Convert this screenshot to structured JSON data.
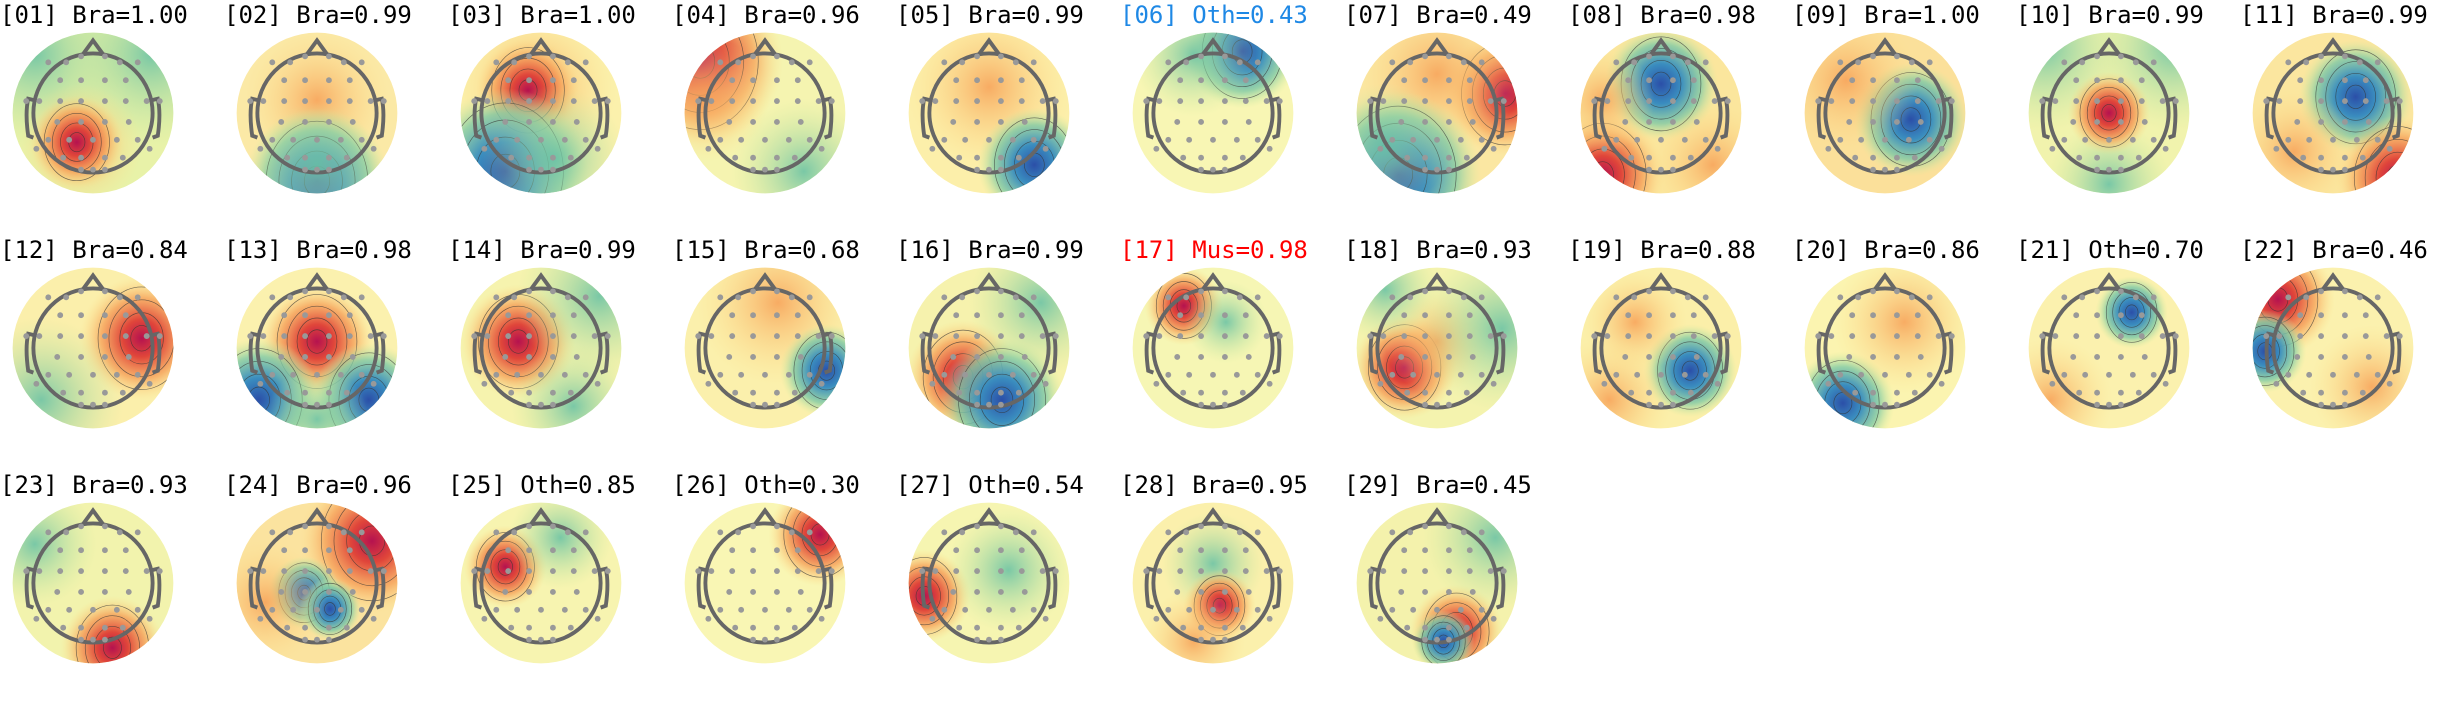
{
  "figure": {
    "components": [
      {
        "index": "01",
        "label": "[01] Bra=1.00",
        "category": "Bra",
        "score": "1.00"
      },
      {
        "index": "02",
        "label": "[02] Bra=0.99",
        "category": "Bra",
        "score": "0.99"
      },
      {
        "index": "03",
        "label": "[03] Bra=1.00",
        "category": "Bra",
        "score": "1.00"
      },
      {
        "index": "04",
        "label": "[04] Bra=0.96",
        "category": "Bra",
        "score": "0.96"
      },
      {
        "index": "05",
        "label": "[05] Bra=0.99",
        "category": "Bra",
        "score": "0.99"
      },
      {
        "index": "06",
        "label": "[06] Oth=0.43",
        "category": "Oth",
        "score": "0.43",
        "color": "#1e88e5"
      },
      {
        "index": "07",
        "label": "[07] Bra=0.49",
        "category": "Bra",
        "score": "0.49"
      },
      {
        "index": "08",
        "label": "[08] Bra=0.98",
        "category": "Bra",
        "score": "0.98"
      },
      {
        "index": "09",
        "label": "[09] Bra=1.00",
        "category": "Bra",
        "score": "1.00"
      },
      {
        "index": "10",
        "label": "[10] Bra=0.99",
        "category": "Bra",
        "score": "0.99"
      },
      {
        "index": "11",
        "label": "[11] Bra=0.99",
        "category": "Bra",
        "score": "0.99"
      },
      {
        "index": "12",
        "label": "[12] Bra=0.84",
        "category": "Bra",
        "score": "0.84"
      },
      {
        "index": "13",
        "label": "[13] Bra=0.98",
        "category": "Bra",
        "score": "0.98"
      },
      {
        "index": "14",
        "label": "[14] Bra=0.99",
        "category": "Bra",
        "score": "0.99"
      },
      {
        "index": "15",
        "label": "[15] Bra=0.68",
        "category": "Bra",
        "score": "0.68"
      },
      {
        "index": "16",
        "label": "[16] Bra=0.99",
        "category": "Bra",
        "score": "0.99"
      },
      {
        "index": "17",
        "label": "[17] Mus=0.98",
        "category": "Mus",
        "score": "0.98",
        "color": "#ff0000"
      },
      {
        "index": "18",
        "label": "[18] Bra=0.93",
        "category": "Bra",
        "score": "0.93"
      },
      {
        "index": "19",
        "label": "[19] Bra=0.88",
        "category": "Bra",
        "score": "0.88"
      },
      {
        "index": "20",
        "label": "[20] Bra=0.86",
        "category": "Bra",
        "score": "0.86"
      },
      {
        "index": "21",
        "label": "[21] Oth=0.70",
        "category": "Oth",
        "score": "0.70"
      },
      {
        "index": "22",
        "label": "[22] Bra=0.46",
        "category": "Bra",
        "score": "0.46"
      },
      {
        "index": "23",
        "label": "[23] Bra=0.93",
        "category": "Bra",
        "score": "0.93"
      },
      {
        "index": "24",
        "label": "[24] Bra=0.96",
        "category": "Bra",
        "score": "0.96"
      },
      {
        "index": "25",
        "label": "[25] Oth=0.85",
        "category": "Oth",
        "score": "0.85"
      },
      {
        "index": "26",
        "label": "[26] Oth=0.30",
        "category": "Oth",
        "score": "0.30"
      },
      {
        "index": "27",
        "label": "[27] Oth=0.54",
        "category": "Oth",
        "score": "0.54"
      },
      {
        "index": "28",
        "label": "[28] Bra=0.95",
        "category": "Bra",
        "score": "0.95"
      },
      {
        "index": "29",
        "label": "[29] Bra=0.45",
        "category": "Bra",
        "score": "0.45"
      }
    ],
    "colormap": "Spectral_r",
    "colors": {
      "positive": "#c2185b",
      "negative": "#2a5caa",
      "neutral": "#fbf7b4",
      "head_outline": "#666666",
      "sensor": "#999999"
    }
  }
}
